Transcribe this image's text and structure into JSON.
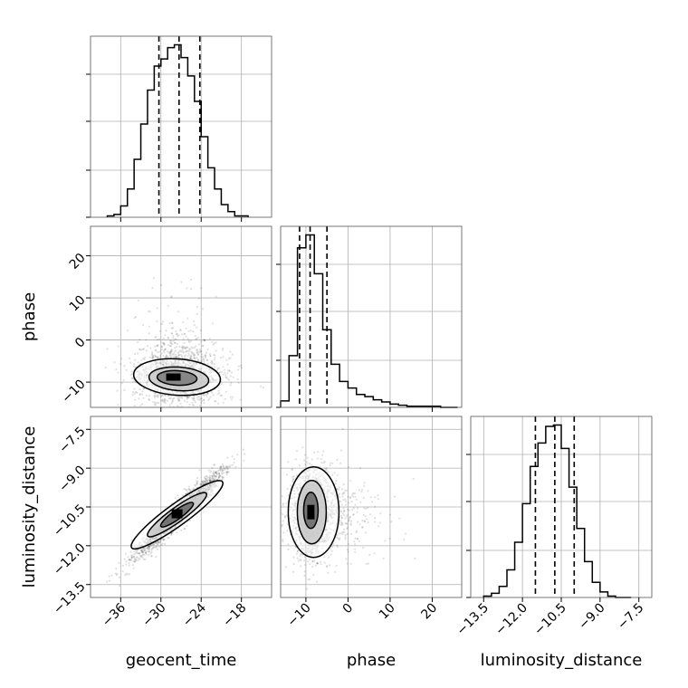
{
  "chart_data": {
    "type": "scatter",
    "title": "",
    "parameters": [
      "geocent_time",
      "phase",
      "luminosity_distance"
    ],
    "axis_labels": [
      "geocent_time",
      "phase",
      "luminosity_distance"
    ],
    "ranges": {
      "geocent_time": [
        -40.5,
        -13.5
      ],
      "phase": [
        -16,
        27
      ],
      "luminosity_distance": [
        -14.0,
        -7.0
      ]
    },
    "ticks": {
      "geocent_time": [
        -36,
        -30,
        -24,
        -18
      ],
      "phase": [
        -10,
        0,
        10,
        20
      ],
      "luminosity_distance": [
        -13.5,
        -12.0,
        -10.5,
        -9.0,
        -7.5
      ]
    },
    "tick_labels": {
      "geocent_time": [
        "−36",
        "−30",
        "−24",
        "−18"
      ],
      "phase": [
        "−10",
        "0",
        "10",
        "20"
      ],
      "luminosity_distance": [
        "−13.5",
        "−12.0",
        "−10.5",
        "−9.0",
        "−7.5"
      ]
    },
    "quantiles": {
      "geocent_time": [
        -30.3,
        -27.3,
        -24.2
      ],
      "phase": [
        -11.5,
        -9.0,
        -5.0
      ],
      "luminosity_distance": [
        -11.5,
        -10.75,
        -10.0
      ]
    },
    "histograms": {
      "geocent_time": {
        "edges": [
          -38,
          -37,
          -36,
          -35,
          -34,
          -33,
          -32,
          -31,
          -30,
          -29,
          -28,
          -27,
          -26,
          -25,
          -24,
          -23,
          -22,
          -21,
          -20,
          -19,
          -18,
          -17
        ],
        "counts": [
          1,
          2,
          8,
          20,
          41,
          66,
          90,
          107,
          112,
          120,
          122,
          113,
          100,
          82,
          57,
          35,
          20,
          9,
          4,
          1,
          1
        ]
      },
      "phase": {
        "edges": [
          -16,
          -14,
          -12,
          -10,
          -8,
          -6,
          -4,
          -2,
          0,
          2,
          4,
          6,
          8,
          10,
          12,
          14,
          16,
          18,
          20,
          22,
          24,
          26
        ],
        "counts": [
          6,
          48,
          148,
          160,
          124,
          72,
          40,
          24,
          18,
          12,
          10,
          7,
          5,
          3,
          2,
          1,
          1,
          1,
          1,
          0,
          0
        ]
      },
      "luminosity_distance": {
        "edges": [
          -13.5,
          -13.2,
          -12.9,
          -12.6,
          -12.3,
          -12.0,
          -11.7,
          -11.4,
          -11.1,
          -10.8,
          -10.5,
          -10.2,
          -9.9,
          -9.6,
          -9.3,
          -9.0,
          -8.7,
          -8.4,
          -8.1,
          -7.8
        ],
        "counts": [
          1,
          3,
          8,
          20,
          40,
          68,
          95,
          112,
          124,
          125,
          108,
          80,
          50,
          26,
          11,
          4,
          1,
          0,
          0
        ]
      }
    },
    "grid": true,
    "contour_levels": [
      0.5,
      0.86,
      0.99
    ],
    "point_color": "#000000"
  }
}
